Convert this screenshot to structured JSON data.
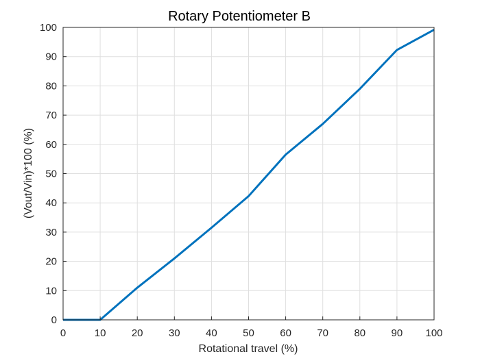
{
  "chart_data": {
    "type": "line",
    "title": "Rotary Potentiometer B",
    "xlabel": "Rotational travel (%)",
    "ylabel": "(Vout/Vin)*100 (%)",
    "xlim": [
      0,
      100
    ],
    "ylim": [
      0,
      100
    ],
    "xticks": [
      0,
      10,
      20,
      30,
      40,
      50,
      60,
      70,
      80,
      90,
      100
    ],
    "yticks": [
      0,
      10,
      20,
      30,
      40,
      50,
      60,
      70,
      80,
      90,
      100
    ],
    "grid": true,
    "series": [
      {
        "color": "#0072BD",
        "x": [
          0,
          10,
          20,
          30,
          40,
          50,
          60,
          70,
          80,
          90,
          100
        ],
        "y": [
          0,
          0,
          11,
          21,
          31.5,
          42.3,
          56.5,
          67,
          79,
          92.3,
          99.2
        ]
      }
    ]
  }
}
